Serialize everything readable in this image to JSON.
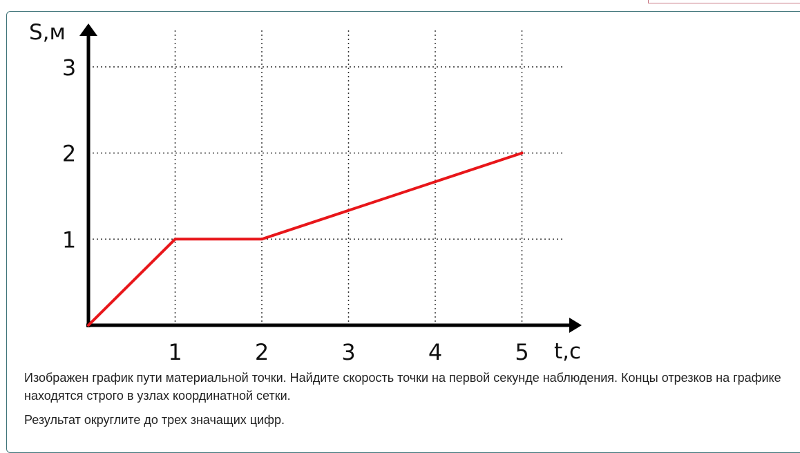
{
  "chart_data": {
    "type": "line",
    "title": "",
    "xlabel": "t,с",
    "ylabel": "S,м",
    "xlim": [
      0,
      5.5
    ],
    "ylim": [
      0,
      3
    ],
    "x_ticks": [
      "1",
      "2",
      "3",
      "4",
      "5"
    ],
    "y_ticks": [
      "1",
      "2",
      "3"
    ],
    "grid": true,
    "grid_style": "dotted",
    "series": [
      {
        "color": "#e8161a",
        "points": [
          {
            "x": 0,
            "y": 0
          },
          {
            "x": 1,
            "y": 1
          },
          {
            "x": 2,
            "y": 1
          },
          {
            "x": 5,
            "y": 2
          }
        ]
      }
    ]
  },
  "question": {
    "paragraph1": "Изображен график пути материальной точки. Найдите скорость точки на первой секунде наблюдения.  Концы отрезков на графике находятся строго в узлах координатной сетки.",
    "paragraph2": "Результат округлите до трех значащих цифр."
  }
}
